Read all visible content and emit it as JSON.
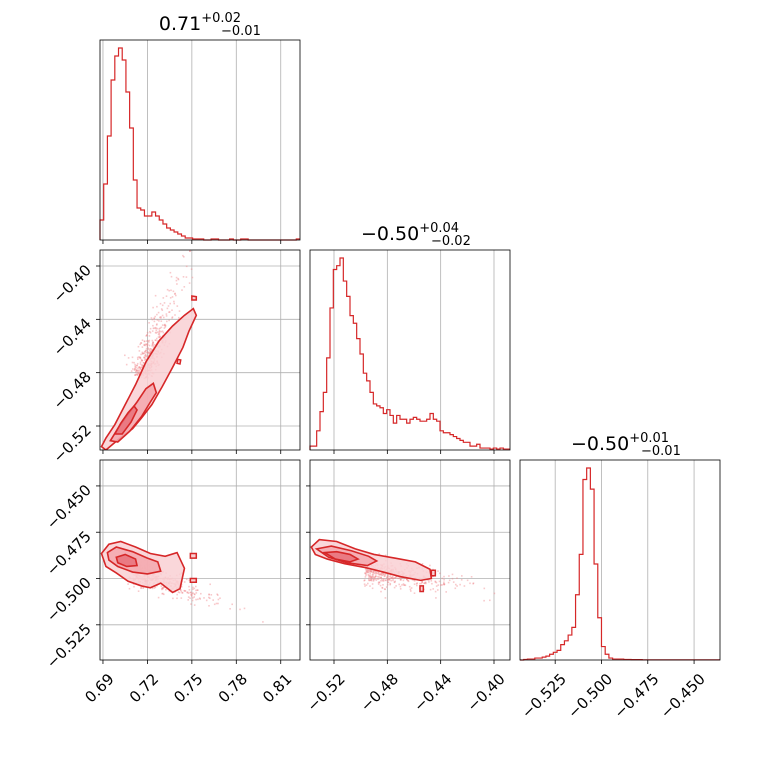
{
  "chart_data": {
    "type": "corner",
    "color": "#d62728",
    "fill_color": "#f4b8bc",
    "grid": true,
    "params": [
      {
        "range": [
          0.688,
          0.823
        ],
        "ticks": [
          0.69,
          0.72,
          0.75,
          0.78,
          0.81
        ],
        "tick_labels": [
          "0.69",
          "0.72",
          "0.75",
          "0.78",
          "0.81"
        ]
      },
      {
        "range": [
          -0.538,
          -0.388
        ],
        "ticks": [
          -0.52,
          -0.48,
          -0.44,
          -0.4
        ],
        "tick_labels": [
          "−0.52",
          "−0.48",
          "−0.44",
          "−0.40"
        ]
      },
      {
        "range": [
          -0.544,
          -0.436
        ],
        "ticks": [
          -0.525,
          -0.5,
          -0.475,
          -0.45
        ],
        "tick_labels": [
          "−0.525",
          "−0.500",
          "−0.475",
          "−0.450"
        ]
      }
    ],
    "titles": [
      {
        "median": "0.71",
        "upper": "+0.02",
        "lower": "−0.01"
      },
      {
        "median": "−0.50",
        "upper": "+0.04",
        "lower": "−0.02"
      },
      {
        "median": "−0.50",
        "upper": "+0.01",
        "lower": "−0.01"
      }
    ],
    "histograms": [
      {
        "param": 0,
        "bin_edges": [
          0.688,
          0.6905,
          0.693,
          0.6955,
          0.698,
          0.7005,
          0.703,
          0.7055,
          0.708,
          0.7105,
          0.713,
          0.7155,
          0.718,
          0.7205,
          0.723,
          0.7255,
          0.728,
          0.7305,
          0.733,
          0.7355,
          0.738,
          0.7405,
          0.743,
          0.7455,
          0.748,
          0.7505,
          0.753,
          0.7555,
          0.758,
          0.7605,
          0.763,
          0.7655,
          0.768,
          0.7705,
          0.773,
          0.7755,
          0.778,
          0.7805,
          0.783,
          0.7855,
          0.788,
          0.7905,
          0.793,
          0.7955,
          0.798,
          0.8005,
          0.803,
          0.8055,
          0.808,
          0.8105,
          0.813,
          0.8155,
          0.818,
          0.8205,
          0.823
        ],
        "counts": [
          10,
          28,
          52,
          80,
          92,
          96,
          90,
          74,
          56,
          30,
          16,
          15,
          12,
          12,
          14,
          12,
          10,
          8,
          6,
          5,
          4,
          3,
          2,
          1,
          1,
          0.5,
          0.5,
          0.5,
          0,
          0,
          0.5,
          0.5,
          0,
          0,
          0,
          0.5,
          0,
          0,
          0.5,
          0.5,
          0,
          0,
          0,
          0,
          0,
          0,
          0,
          0,
          0,
          0,
          0,
          0,
          0,
          0.5
        ]
      },
      {
        "param": 1,
        "bin_edges": [
          -0.538,
          -0.5355,
          -0.533,
          -0.5305,
          -0.528,
          -0.5255,
          -0.523,
          -0.5205,
          -0.518,
          -0.5155,
          -0.513,
          -0.5105,
          -0.508,
          -0.5055,
          -0.503,
          -0.5005,
          -0.498,
          -0.4955,
          -0.493,
          -0.4905,
          -0.488,
          -0.4855,
          -0.483,
          -0.4805,
          -0.478,
          -0.4755,
          -0.473,
          -0.4705,
          -0.468,
          -0.4655,
          -0.463,
          -0.4605,
          -0.458,
          -0.4555,
          -0.453,
          -0.4505,
          -0.448,
          -0.4455,
          -0.443,
          -0.4405,
          -0.438,
          -0.4355,
          -0.433,
          -0.4305,
          -0.428,
          -0.4255,
          -0.423,
          -0.4205,
          -0.418,
          -0.4155,
          -0.413,
          -0.4105,
          -0.408,
          -0.4055,
          -0.403,
          -0.4005,
          -0.398,
          -0.3955,
          -0.393,
          -0.3905,
          -0.388
        ],
        "counts": [
          2,
          2,
          10,
          20,
          30,
          48,
          74,
          94,
          96,
          100,
          88,
          80,
          70,
          66,
          58,
          50,
          40,
          36,
          30,
          24,
          23,
          22,
          19,
          21,
          18,
          14,
          18,
          16,
          16,
          14,
          16,
          17,
          16,
          15,
          15,
          16,
          19,
          16,
          15,
          10,
          9,
          9,
          8,
          7,
          6,
          5,
          4,
          4,
          2,
          2,
          3,
          1,
          1,
          1,
          0.5,
          1,
          0.5,
          1,
          0.5,
          0.5
        ]
      },
      {
        "param": 2,
        "bin_edges": [
          -0.544,
          -0.542,
          -0.54,
          -0.538,
          -0.536,
          -0.534,
          -0.532,
          -0.53,
          -0.528,
          -0.526,
          -0.524,
          -0.522,
          -0.52,
          -0.518,
          -0.516,
          -0.514,
          -0.512,
          -0.51,
          -0.508,
          -0.506,
          -0.504,
          -0.502,
          -0.5,
          -0.498,
          -0.496,
          -0.494,
          -0.492,
          -0.49,
          -0.488,
          -0.486,
          -0.484,
          -0.482,
          -0.48,
          -0.478,
          -0.476,
          -0.474,
          -0.472,
          -0.47,
          -0.468,
          -0.466,
          -0.464,
          -0.462,
          -0.46,
          -0.458,
          -0.456,
          -0.454,
          -0.452,
          -0.45,
          -0.448,
          -0.446,
          -0.444,
          -0.442,
          -0.44,
          -0.438,
          -0.436
        ],
        "counts": [
          0,
          0.3,
          0.5,
          0.5,
          1,
          1,
          1.5,
          2,
          3,
          4,
          5,
          8,
          10,
          13,
          17,
          34,
          55,
          94,
          100,
          89,
          50,
          22,
          7,
          3,
          1,
          0.5,
          0.5,
          0.5,
          0.3,
          0.3,
          0.2,
          0.2,
          0.2,
          0.1,
          0.1,
          0.1,
          0.1,
          0.1,
          0.1,
          0.1,
          0.1,
          0.1,
          0.1,
          0.1,
          0.1,
          0.1,
          0.1,
          0.1,
          0.1,
          0.1,
          0.1,
          0.1,
          0.1,
          0.1
        ]
      }
    ],
    "pairs": [
      {
        "x_param": 0,
        "y_param": 1,
        "contours": [
          [
            [
              0.689,
              -0.5355
            ],
            [
              0.692,
              -0.538
            ],
            [
              0.7,
              -0.5305
            ],
            [
              0.71,
              -0.522
            ],
            [
              0.716,
              -0.514
            ],
            [
              0.723,
              -0.504
            ],
            [
              0.73,
              -0.4905
            ],
            [
              0.737,
              -0.476
            ],
            [
              0.744,
              -0.461
            ],
            [
              0.748,
              -0.449
            ],
            [
              0.753,
              -0.437
            ],
            [
              0.751,
              -0.432
            ],
            [
              0.745,
              -0.437
            ],
            [
              0.737,
              -0.445
            ],
            [
              0.728,
              -0.456
            ],
            [
              0.719,
              -0.472
            ],
            [
              0.712,
              -0.489
            ],
            [
              0.705,
              -0.504
            ],
            [
              0.698,
              -0.519
            ],
            [
              0.692,
              -0.529
            ],
            [
              0.689,
              -0.5355
            ]
          ],
          [
            [
              0.695,
              -0.531
            ],
            [
              0.7,
              -0.532
            ],
            [
              0.708,
              -0.524
            ],
            [
              0.716,
              -0.513
            ],
            [
              0.722,
              -0.502
            ],
            [
              0.726,
              -0.495
            ],
            [
              0.724,
              -0.488
            ],
            [
              0.719,
              -0.492
            ],
            [
              0.713,
              -0.502
            ],
            [
              0.707,
              -0.511
            ],
            [
              0.7,
              -0.522
            ],
            [
              0.695,
              -0.531
            ]
          ],
          [
            [
              0.698,
              -0.526
            ],
            [
              0.703,
              -0.526
            ],
            [
              0.709,
              -0.517
            ],
            [
              0.713,
              -0.508
            ],
            [
              0.711,
              -0.505
            ],
            [
              0.707,
              -0.51
            ],
            [
              0.702,
              -0.518
            ],
            [
              0.698,
              -0.526
            ]
          ]
        ],
        "islands": [
          [
            [
              0.75,
              -0.4225
            ],
            [
              0.753,
              -0.423
            ],
            [
              0.753,
              -0.4255
            ],
            [
              0.75,
              -0.4255
            ],
            [
              0.75,
              -0.4225
            ]
          ],
          [
            [
              0.7405,
              -0.47
            ],
            [
              0.7425,
              -0.4705
            ],
            [
              0.742,
              -0.4735
            ],
            [
              0.74,
              -0.473
            ],
            [
              0.7405,
              -0.47
            ]
          ]
        ],
        "scatter_center": [
          0.722,
          -0.48
        ],
        "scatter_direction": [
          1.0,
          2.8
        ],
        "scatter_points": 420
      },
      {
        "x_param": 0,
        "y_param": 2,
        "contours": [
          [
            [
              0.689,
              -0.4865
            ],
            [
              0.694,
              -0.4815
            ],
            [
              0.702,
              -0.48
            ],
            [
              0.712,
              -0.483
            ],
            [
              0.722,
              -0.4865
            ],
            [
              0.732,
              -0.488
            ],
            [
              0.74,
              -0.486
            ],
            [
              0.745,
              -0.4945
            ],
            [
              0.742,
              -0.5055
            ],
            [
              0.737,
              -0.5075
            ],
            [
              0.729,
              -0.5025
            ],
            [
              0.722,
              -0.505
            ],
            [
              0.716,
              -0.504
            ],
            [
              0.707,
              -0.5015
            ],
            [
              0.699,
              -0.497
            ],
            [
              0.692,
              -0.4935
            ],
            [
              0.689,
              -0.4865
            ]
          ],
          [
            [
              0.693,
              -0.486
            ],
            [
              0.699,
              -0.483
            ],
            [
              0.71,
              -0.4855
            ],
            [
              0.72,
              -0.489
            ],
            [
              0.727,
              -0.491
            ],
            [
              0.729,
              -0.496
            ],
            [
              0.72,
              -0.4975
            ],
            [
              0.71,
              -0.4965
            ],
            [
              0.7,
              -0.4935
            ],
            [
              0.694,
              -0.49
            ],
            [
              0.693,
              -0.486
            ]
          ],
          [
            [
              0.699,
              -0.4885
            ],
            [
              0.705,
              -0.487
            ],
            [
              0.712,
              -0.4895
            ],
            [
              0.713,
              -0.493
            ],
            [
              0.706,
              -0.4935
            ],
            [
              0.7,
              -0.4915
            ],
            [
              0.699,
              -0.4885
            ]
          ]
        ],
        "islands": [
          [
            [
              0.749,
              -0.4865
            ],
            [
              0.753,
              -0.4865
            ],
            [
              0.753,
              -0.489
            ],
            [
              0.749,
              -0.489
            ],
            [
              0.749,
              -0.4865
            ]
          ],
          [
            [
              0.749,
              -0.5
            ],
            [
              0.753,
              -0.5
            ],
            [
              0.753,
              -0.502
            ],
            [
              0.749,
              -0.502
            ],
            [
              0.749,
              -0.5
            ]
          ]
        ],
        "scatter_center": [
          0.715,
          -0.493
        ],
        "scatter_direction": [
          1.0,
          -0.35
        ],
        "scatter_points": 380
      },
      {
        "x_param": 1,
        "y_param": 2,
        "contours": [
          [
            [
              -0.537,
              -0.483
            ],
            [
              -0.531,
              -0.479
            ],
            [
              -0.518,
              -0.48
            ],
            [
              -0.504,
              -0.484
            ],
            [
              -0.49,
              -0.487
            ],
            [
              -0.474,
              -0.489
            ],
            [
              -0.459,
              -0.491
            ],
            [
              -0.448,
              -0.495
            ],
            [
              -0.447,
              -0.5
            ],
            [
              -0.455,
              -0.501
            ],
            [
              -0.47,
              -0.499
            ],
            [
              -0.483,
              -0.4965
            ],
            [
              -0.497,
              -0.494
            ],
            [
              -0.512,
              -0.492
            ],
            [
              -0.525,
              -0.4895
            ],
            [
              -0.534,
              -0.487
            ],
            [
              -0.537,
              -0.483
            ]
          ],
          [
            [
              -0.533,
              -0.484
            ],
            [
              -0.522,
              -0.4825
            ],
            [
              -0.507,
              -0.485
            ],
            [
              -0.494,
              -0.488
            ],
            [
              -0.488,
              -0.4905
            ],
            [
              -0.495,
              -0.493
            ],
            [
              -0.51,
              -0.4915
            ],
            [
              -0.524,
              -0.4885
            ],
            [
              -0.533,
              -0.484
            ]
          ],
          [
            [
              -0.527,
              -0.486
            ],
            [
              -0.518,
              -0.4855
            ],
            [
              -0.508,
              -0.487
            ],
            [
              -0.502,
              -0.4895
            ],
            [
              -0.508,
              -0.491
            ],
            [
              -0.519,
              -0.4895
            ],
            [
              -0.527,
              -0.486
            ]
          ]
        ],
        "islands": [
          [
            [
              -0.4555,
              -0.504
            ],
            [
              -0.453,
              -0.504
            ],
            [
              -0.453,
              -0.507
            ],
            [
              -0.4555,
              -0.507
            ],
            [
              -0.4555,
              -0.504
            ]
          ],
          [
            [
              -0.447,
              -0.4955
            ],
            [
              -0.444,
              -0.4955
            ],
            [
              -0.444,
              -0.4985
            ],
            [
              -0.447,
              -0.4985
            ],
            [
              -0.447,
              -0.4955
            ]
          ]
        ],
        "scatter_center": [
          -0.49,
          -0.494
        ],
        "scatter_direction": [
          1.0,
          -0.14
        ],
        "scatter_points": 420
      }
    ]
  }
}
